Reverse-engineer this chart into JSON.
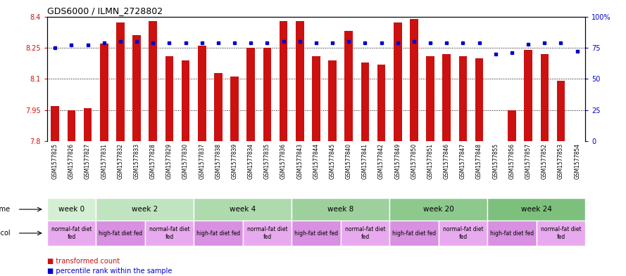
{
  "title": "GDS6000 / ILMN_2728802",
  "samples": [
    "GSM1577825",
    "GSM1577826",
    "GSM1577827",
    "GSM1577831",
    "GSM1577832",
    "GSM1577833",
    "GSM1577828",
    "GSM1577829",
    "GSM1577830",
    "GSM1577837",
    "GSM1577838",
    "GSM1577839",
    "GSM1577834",
    "GSM1577835",
    "GSM1577836",
    "GSM1577843",
    "GSM1577844",
    "GSM1577845",
    "GSM1577840",
    "GSM1577841",
    "GSM1577842",
    "GSM1577849",
    "GSM1577850",
    "GSM1577851",
    "GSM1577846",
    "GSM1577847",
    "GSM1577848",
    "GSM1577855",
    "GSM1577856",
    "GSM1577857",
    "GSM1577852",
    "GSM1577853",
    "GSM1577854"
  ],
  "red_values": [
    7.97,
    7.95,
    7.96,
    8.27,
    8.37,
    8.31,
    8.38,
    8.21,
    8.19,
    8.26,
    8.13,
    8.11,
    8.25,
    8.25,
    8.38,
    8.38,
    8.21,
    8.19,
    8.33,
    8.18,
    8.17,
    8.37,
    8.39,
    8.21,
    8.22,
    8.21,
    8.2,
    7.8,
    7.95,
    8.24,
    8.22,
    8.09,
    7.8
  ],
  "blue_values": [
    75,
    77,
    77,
    79,
    80,
    80,
    79,
    79,
    79,
    79,
    79,
    79,
    79,
    79,
    80,
    80,
    79,
    79,
    80,
    79,
    79,
    79,
    80,
    79,
    79,
    79,
    79,
    70,
    71,
    78,
    79,
    79,
    72
  ],
  "ylim_left": [
    7.8,
    8.4
  ],
  "ylim_right": [
    0,
    100
  ],
  "yticks_left": [
    7.8,
    7.95,
    8.1,
    8.25,
    8.4
  ],
  "yticks_right": [
    0,
    25,
    50,
    75,
    100
  ],
  "ytick_labels_right": [
    "0",
    "25",
    "50",
    "75",
    "100%"
  ],
  "time_groups": [
    {
      "label": "week 0",
      "start": 0,
      "end": 3,
      "color": "#d4efd4"
    },
    {
      "label": "week 2",
      "start": 3,
      "end": 9,
      "color": "#c0e4c0"
    },
    {
      "label": "week 4",
      "start": 9,
      "end": 15,
      "color": "#aedaae"
    },
    {
      "label": "week 8",
      "start": 15,
      "end": 21,
      "color": "#9dd09d"
    },
    {
      "label": "week 20",
      "start": 21,
      "end": 27,
      "color": "#8dc88d"
    },
    {
      "label": "week 24",
      "start": 27,
      "end": 33,
      "color": "#7dc07d"
    }
  ],
  "protocol_groups": [
    {
      "label": "normal-fat diet\nfed",
      "start": 0,
      "end": 3,
      "color": "#e8aaee"
    },
    {
      "label": "high-fat diet fed",
      "start": 3,
      "end": 6,
      "color": "#d890e0"
    },
    {
      "label": "normal-fat diet\nfed",
      "start": 6,
      "end": 9,
      "color": "#e8aaee"
    },
    {
      "label": "high-fat diet fed",
      "start": 9,
      "end": 12,
      "color": "#d890e0"
    },
    {
      "label": "normal-fat diet\nfed",
      "start": 12,
      "end": 15,
      "color": "#e8aaee"
    },
    {
      "label": "high-fat diet fed",
      "start": 15,
      "end": 18,
      "color": "#d890e0"
    },
    {
      "label": "normal-fat diet\nfed",
      "start": 18,
      "end": 21,
      "color": "#e8aaee"
    },
    {
      "label": "high-fat diet fed",
      "start": 21,
      "end": 24,
      "color": "#d890e0"
    },
    {
      "label": "normal-fat diet\nfed",
      "start": 24,
      "end": 27,
      "color": "#e8aaee"
    },
    {
      "label": "high-fat diet fed",
      "start": 27,
      "end": 30,
      "color": "#d890e0"
    },
    {
      "label": "normal-fat diet\nfed",
      "start": 30,
      "end": 33,
      "color": "#e8aaee"
    }
  ],
  "bar_color": "#cc1111",
  "dot_color": "#0000cc",
  "bg_color": "#ffffff",
  "bar_width": 0.5,
  "label_bg": "#d8d8d8",
  "time_label_color": "#000000",
  "protocol_label_color": "#000000"
}
